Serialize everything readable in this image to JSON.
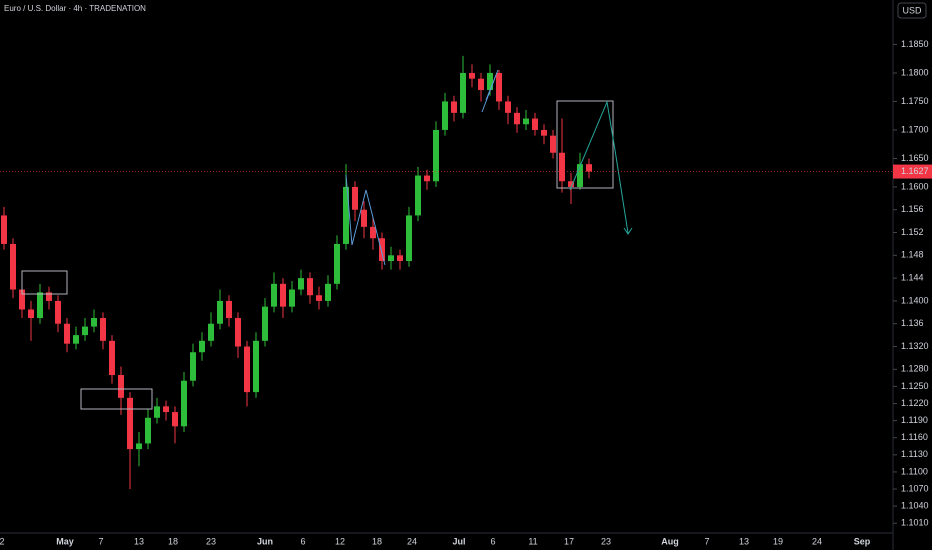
{
  "chart_data": {
    "type": "candlestick",
    "title": "Euro / U.S. Dollar · 4h · TRADENATION",
    "currency": "USD",
    "x_axis_labels": [
      "2",
      "May",
      "7",
      "13",
      "18",
      "23",
      "Jun",
      "6",
      "12",
      "18",
      "24",
      "Jul",
      "6",
      "11",
      "17",
      "23",
      "Aug",
      "7",
      "13",
      "19",
      "24",
      "Sep"
    ],
    "open": [
      1.155,
      1.15,
      1.142,
      1.1385,
      1.137,
      1.1415,
      1.14,
      1.136,
      1.1325,
      1.134,
      1.1355,
      1.137,
      1.133,
      1.127,
      1.123,
      1.114,
      1.115,
      1.1195,
      1.1215,
      1.1205,
      1.118,
      1.126,
      1.131,
      1.133,
      1.136,
      1.14,
      1.137,
      1.132,
      1.124,
      1.133,
      1.139,
      1.143,
      1.139,
      1.142,
      1.144,
      1.141,
      1.14,
      1.143,
      1.15,
      1.16,
      1.156,
      1.153,
      1.151,
      1.147,
      1.148,
      1.147,
      1.155,
      1.162,
      1.161,
      1.17,
      1.175,
      1.173,
      1.18,
      1.179,
      1.177,
      1.18,
      1.175,
      1.173,
      1.171,
      1.172,
      1.17,
      1.169,
      1.166,
      1.161,
      1.16,
      1.164
    ],
    "high": [
      1.1565,
      1.151,
      1.1435,
      1.14,
      1.143,
      1.1425,
      1.141,
      1.137,
      1.1355,
      1.137,
      1.1385,
      1.138,
      1.134,
      1.1285,
      1.124,
      1.117,
      1.121,
      1.123,
      1.1225,
      1.1215,
      1.1275,
      1.1325,
      1.1345,
      1.138,
      1.142,
      1.141,
      1.138,
      1.133,
      1.1345,
      1.1405,
      1.145,
      1.144,
      1.1435,
      1.1455,
      1.145,
      1.1425,
      1.1445,
      1.1515,
      1.164,
      1.161,
      1.1575,
      1.1545,
      1.152,
      1.1495,
      1.149,
      1.1565,
      1.1635,
      1.163,
      1.1715,
      1.1765,
      1.176,
      1.183,
      1.1815,
      1.18,
      1.1815,
      1.1805,
      1.176,
      1.174,
      1.1735,
      1.173,
      1.171,
      1.17,
      1.172,
      1.1625,
      1.166,
      1.165
    ],
    "low": [
      1.149,
      1.1405,
      1.137,
      1.133,
      1.136,
      1.1385,
      1.1345,
      1.131,
      1.1315,
      1.133,
      1.1345,
      1.1315,
      1.1255,
      1.12,
      1.107,
      1.111,
      1.114,
      1.1185,
      1.119,
      1.115,
      1.117,
      1.125,
      1.1295,
      1.132,
      1.135,
      1.1355,
      1.13,
      1.1215,
      1.123,
      1.132,
      1.138,
      1.137,
      1.138,
      1.141,
      1.1395,
      1.1385,
      1.139,
      1.142,
      1.149,
      1.154,
      1.151,
      1.149,
      1.1455,
      1.1455,
      1.1455,
      1.146,
      1.154,
      1.1595,
      1.16,
      1.169,
      1.1715,
      1.172,
      1.1775,
      1.175,
      1.176,
      1.1735,
      1.171,
      1.1695,
      1.17,
      1.169,
      1.1675,
      1.165,
      1.159,
      1.157,
      1.1595,
      1.1615
    ],
    "close": [
      1.15,
      1.142,
      1.1385,
      1.137,
      1.1415,
      1.14,
      1.136,
      1.1325,
      1.134,
      1.1355,
      1.137,
      1.133,
      1.127,
      1.123,
      1.114,
      1.115,
      1.1195,
      1.1215,
      1.1205,
      1.118,
      1.126,
      1.131,
      1.133,
      1.136,
      1.14,
      1.137,
      1.132,
      1.124,
      1.133,
      1.139,
      1.143,
      1.139,
      1.142,
      1.144,
      1.141,
      1.14,
      1.143,
      1.15,
      1.16,
      1.156,
      1.153,
      1.151,
      1.147,
      1.148,
      1.147,
      1.155,
      1.162,
      1.161,
      1.17,
      1.175,
      1.173,
      1.18,
      1.179,
      1.177,
      1.18,
      1.175,
      1.173,
      1.171,
      1.172,
      1.17,
      1.169,
      1.166,
      1.161,
      1.16,
      1.164,
      1.1627
    ],
    "up_color": "#2ebd3a",
    "down_color": "#f23645",
    "ylim": [
      1.0963,
      1.1928
    ],
    "yticks": [
      {
        "value": 1.185,
        "label": "1.1850"
      },
      {
        "value": 1.18,
        "label": "1.1800"
      },
      {
        "value": 1.175,
        "label": "1.1750"
      },
      {
        "value": 1.17,
        "label": "1.1700"
      },
      {
        "value": 1.165,
        "label": "1.1650"
      },
      {
        "value": 1.16,
        "label": "1.1600"
      },
      1.156,
      1.152,
      1.148,
      1.144,
      {
        "value": 1.14,
        "label": "1.1400"
      },
      1.136,
      {
        "value": 1.132,
        "label": "1.1320"
      },
      {
        "value": 1.128,
        "label": "1.1280"
      },
      {
        "value": 1.125,
        "label": "1.1250"
      },
      {
        "value": 1.122,
        "label": "1.1220"
      },
      {
        "value": 1.119,
        "label": "1.1190"
      },
      {
        "value": 1.116,
        "label": "1.1160"
      },
      {
        "value": 1.113,
        "label": "1.1130"
      },
      {
        "value": 1.11,
        "label": "1.1100"
      },
      {
        "value": 1.107,
        "label": "1.1070"
      },
      {
        "value": 1.104,
        "label": "1.1040"
      },
      {
        "value": 1.101,
        "label": "1.1010"
      }
    ]
  }
}
